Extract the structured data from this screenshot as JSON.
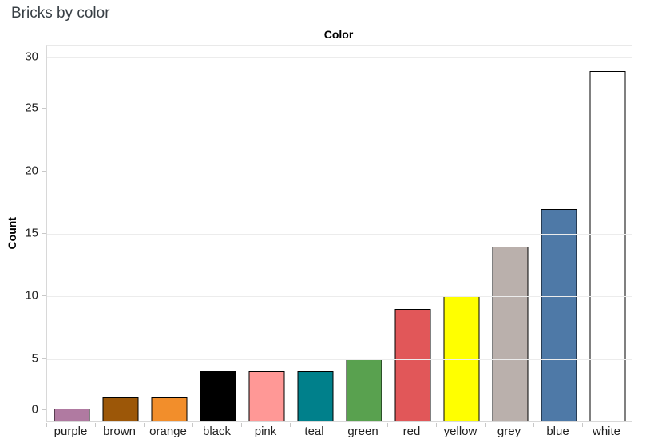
{
  "page_title": "Bricks by color",
  "chart_data": {
    "type": "bar",
    "title": "Color",
    "xlabel": "",
    "ylabel": "Count",
    "categories": [
      "purple",
      "brown",
      "orange",
      "black",
      "pink",
      "teal",
      "green",
      "red",
      "yellow",
      "grey",
      "blue",
      "white"
    ],
    "values": [
      1,
      2,
      2,
      4,
      4,
      4,
      5,
      9,
      10,
      14,
      17,
      28
    ],
    "bar_colors": [
      "#b07aa1",
      "#9c5708",
      "#f28e2b",
      "#000000",
      "#ff9896",
      "#00808b",
      "#59a14f",
      "#e15759",
      "#ffff00",
      "#bab0ac",
      "#4e79a7",
      "#ffffff"
    ],
    "bar_outline_color": "#000000",
    "ylim": [
      0,
      30
    ],
    "yticks": [
      0,
      5,
      10,
      15,
      20,
      25,
      30
    ],
    "grid": "horizontal",
    "legend": "none"
  },
  "colors": {
    "background": "#ffffff",
    "page_title_text": "#383f45",
    "chart_title_text": "#000000",
    "axis_text": "#1f1f1f",
    "gridline": "#ececec",
    "axis_line": "#d8d8d8",
    "tick_mark": "#c8c8c8"
  }
}
